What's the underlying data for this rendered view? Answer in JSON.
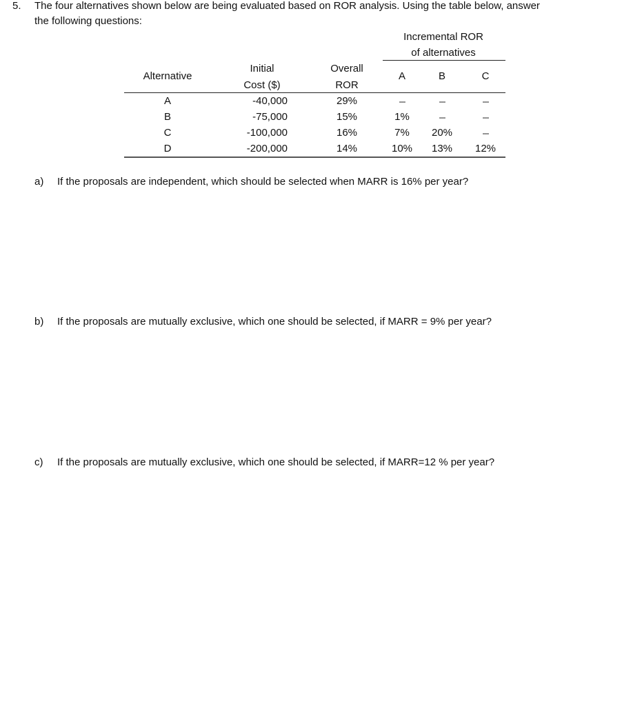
{
  "question": {
    "number": "5.",
    "intro_line1": "The four alternatives shown below are being evaluated based on ROR analysis. Using the table below, answer",
    "intro_line2": "the following questions:"
  },
  "table": {
    "group_header_line1": "Incremental ROR",
    "group_header_line2": "of alternatives",
    "headers": {
      "alternative": "Alternative",
      "cost_line1": "Initial",
      "cost_line2": "Cost ($)",
      "ror_line1": "Overall",
      "ror_line2": "ROR",
      "inc_a": "A",
      "inc_b": "B",
      "inc_c": "C"
    },
    "rows": [
      {
        "alt": "A",
        "cost": "-40,000",
        "ror": "29%",
        "a": "---",
        "b": "---",
        "c": "---"
      },
      {
        "alt": "B",
        "cost": "-75,000",
        "ror": "15%",
        "a": "1%",
        "b": "---",
        "c": "---"
      },
      {
        "alt": "C",
        "cost": "-100,000",
        "ror": "16%",
        "a": "7%",
        "b": "20%",
        "c": "---"
      },
      {
        "alt": "D",
        "cost": "-200,000",
        "ror": "14%",
        "a": "10%",
        "b": "13%",
        "c": "12%"
      }
    ]
  },
  "subquestions": [
    {
      "label": "a)",
      "text": "If the proposals are independent, which should be selected when MARR is 16% per year?"
    },
    {
      "label": "b)",
      "text": "If the proposals are mutually exclusive, which one should be selected, if MARR = 9% per year?"
    },
    {
      "label": "c)",
      "text": "If the proposals are mutually exclusive, which one should be selected, if MARR=12 % per year?"
    }
  ]
}
